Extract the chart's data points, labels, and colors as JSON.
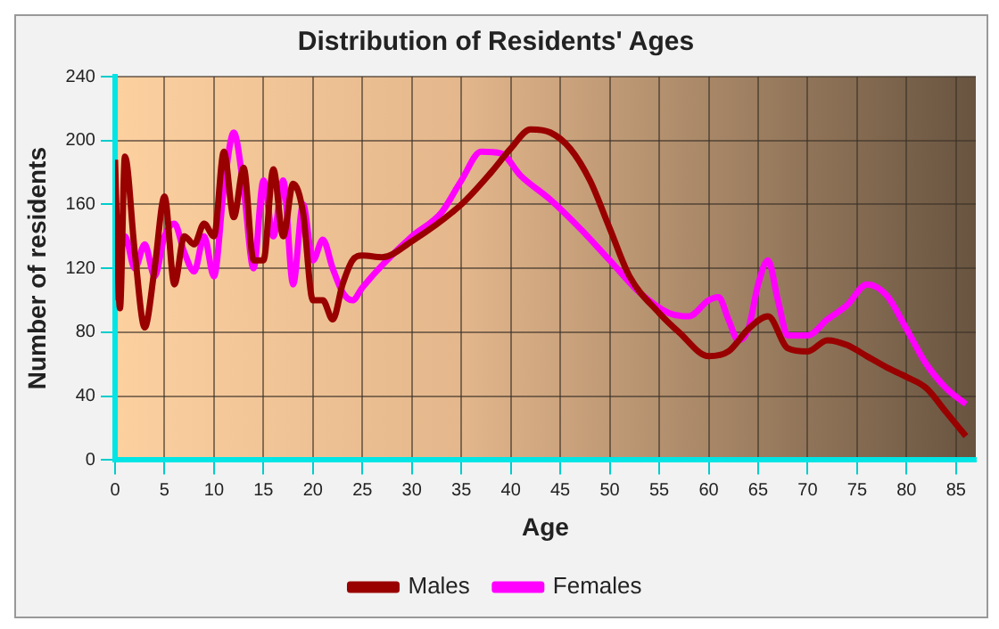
{
  "chart_data": {
    "type": "line",
    "title": "Distribution of Residents' Ages",
    "xlabel": "Age",
    "ylabel": "Number of residents",
    "xlim": [
      0,
      87
    ],
    "xticks": [
      0,
      5,
      10,
      15,
      20,
      25,
      30,
      35,
      40,
      45,
      50,
      55,
      60,
      65,
      70,
      75,
      80,
      85
    ],
    "ylim": [
      0,
      240
    ],
    "yticks": [
      0,
      40,
      80,
      120,
      160,
      200,
      240
    ],
    "grid": true,
    "legend": "bottom",
    "marker": "none",
    "line_style": "solid",
    "series": [
      {
        "name": "Males",
        "color": "#990000",
        "x": [
          0,
          0.5,
          1,
          2,
          3,
          4,
          5,
          6,
          7,
          8,
          9,
          10,
          11,
          12,
          13,
          14,
          15,
          16,
          17,
          18,
          19,
          20,
          21,
          22,
          23,
          24,
          25,
          27,
          30,
          35,
          38,
          40,
          42,
          44,
          46,
          48,
          50,
          52,
          55,
          57,
          60,
          62,
          64,
          66,
          68,
          70,
          72,
          74,
          76,
          78,
          80,
          82,
          84,
          86
        ],
        "values": [
          188,
          95,
          190,
          130,
          83,
          120,
          165,
          110,
          140,
          135,
          148,
          140,
          193,
          152,
          183,
          125,
          125,
          182,
          140,
          173,
          155,
          100,
          100,
          88,
          110,
          125,
          128,
          127,
          137,
          160,
          180,
          195,
          207,
          205,
          195,
          175,
          145,
          115,
          92,
          80,
          65,
          68,
          82,
          90,
          70,
          68,
          75,
          72,
          65,
          58,
          52,
          45,
          30,
          15
        ]
      },
      {
        "name": "Females",
        "color": "#ff00ff",
        "x": [
          0,
          1,
          2,
          3,
          4,
          5,
          6,
          7,
          8,
          9,
          10,
          11,
          12,
          13,
          14,
          15,
          16,
          17,
          18,
          19,
          20,
          21,
          22,
          23,
          24,
          25,
          27,
          30,
          33,
          35,
          37,
          39,
          41,
          44,
          47,
          50,
          53,
          56,
          58,
          60,
          61,
          62,
          63,
          64,
          65,
          66,
          67,
          68,
          70,
          72,
          74,
          76,
          78,
          80,
          82,
          84,
          86
        ],
        "values": [
          100,
          140,
          120,
          135,
          115,
          140,
          148,
          130,
          118,
          140,
          115,
          170,
          205,
          170,
          120,
          175,
          140,
          175,
          110,
          160,
          125,
          138,
          120,
          105,
          100,
          108,
          122,
          140,
          155,
          175,
          193,
          192,
          178,
          163,
          145,
          125,
          105,
          92,
          90,
          100,
          102,
          88,
          75,
          82,
          110,
          125,
          100,
          78,
          78,
          88,
          97,
          110,
          103,
          82,
          60,
          45,
          35
        ]
      }
    ]
  }
}
